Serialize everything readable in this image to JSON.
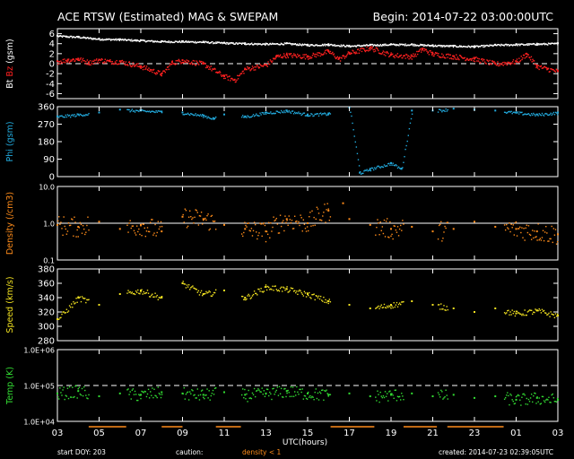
{
  "header": {
    "title": "ACE RTSW (Estimated) MAG & SWEPAM",
    "begin": "Begin: 2014-07-22 03:00:00UTC"
  },
  "footer": {
    "start_doy": "start DOY: 203",
    "caution": "caution:",
    "density_note": "density < 1",
    "created": "created: 2014-07-23 02:39:05UTC"
  },
  "colors": {
    "background": "#000000",
    "axis": "#ffffff",
    "bt": "#ffffff",
    "bz": "#ff2020",
    "phi": "#22aadd",
    "density": "#ff8c1a",
    "speed": "#f0e020",
    "temp": "#33dd33",
    "reference_line": "#ffffff"
  },
  "chart_data": [
    {
      "id": "mag",
      "type": "scatter",
      "ylabel_parts": [
        "Bt",
        "Bz",
        "(gsm)"
      ],
      "yticks": [
        6,
        4,
        2,
        0,
        -2,
        -4,
        -6
      ],
      "ylim": [
        -7,
        7
      ],
      "reference_line": 0,
      "series": [
        {
          "name": "Bt",
          "color_key": "bt",
          "points": [
            [
              0,
              5.6
            ],
            [
              1,
              5.4
            ],
            [
              2,
              5.0
            ],
            [
              3,
              4.9
            ],
            [
              4,
              4.7
            ],
            [
              5,
              4.5
            ],
            [
              6,
              4.5
            ],
            [
              7,
              4.4
            ],
            [
              8,
              4.2
            ],
            [
              9,
              4.1
            ],
            [
              10,
              4.0
            ],
            [
              11,
              4.1
            ],
            [
              12,
              3.8
            ],
            [
              13,
              3.9
            ],
            [
              14,
              3.6
            ],
            [
              15,
              3.8
            ],
            [
              16,
              3.9
            ],
            [
              17,
              3.9
            ],
            [
              18,
              3.7
            ],
            [
              19,
              3.6
            ],
            [
              20,
              3.5
            ],
            [
              21,
              3.8
            ],
            [
              22,
              3.9
            ],
            [
              23,
              4.0
            ],
            [
              24,
              4.1
            ]
          ]
        },
        {
          "name": "Bz",
          "color_key": "bz",
          "points": [
            [
              0,
              0.5
            ],
            [
              0.5,
              0.8
            ],
            [
              1,
              1.0
            ],
            [
              1.5,
              0.3
            ],
            [
              2,
              0.8
            ],
            [
              2.5,
              0.5
            ],
            [
              3,
              0.5
            ],
            [
              4,
              -0.5
            ],
            [
              5,
              -2.0
            ],
            [
              5.5,
              0.3
            ],
            [
              6,
              0.7
            ],
            [
              7,
              0.0
            ],
            [
              8,
              -2.5
            ],
            [
              8.5,
              -3.2
            ],
            [
              9,
              -1.0
            ],
            [
              10,
              -0.2
            ],
            [
              10.5,
              1.5
            ],
            [
              11,
              1.8
            ],
            [
              12,
              1.5
            ],
            [
              13,
              2.5
            ],
            [
              13.5,
              1.0
            ],
            [
              14,
              2.2
            ],
            [
              15,
              3.2
            ],
            [
              16,
              1.8
            ],
            [
              17,
              1.5
            ],
            [
              17.5,
              3.0
            ],
            [
              18,
              2.0
            ],
            [
              19,
              1.5
            ],
            [
              20,
              1.0
            ],
            [
              21,
              0.0
            ],
            [
              22,
              0.5
            ],
            [
              22.5,
              2.0
            ],
            [
              23,
              -0.5
            ],
            [
              23.5,
              -1.0
            ],
            [
              24,
              -1.5
            ]
          ]
        }
      ]
    },
    {
      "id": "phi",
      "type": "scatter",
      "ylabel": "Phi (gsm)",
      "yticks": [
        360,
        270,
        180,
        90,
        0
      ],
      "ylim": [
        0,
        360
      ],
      "series": [
        {
          "name": "Phi",
          "color_key": "phi",
          "points": [
            [
              0,
              310
            ],
            [
              1,
              320
            ],
            [
              2,
              330
            ],
            [
              3,
              345
            ],
            [
              4,
              340
            ],
            [
              5,
              335
            ],
            [
              6,
              330
            ],
            [
              7,
              315
            ],
            [
              7.5,
              300
            ],
            [
              8,
              320
            ],
            [
              9,
              310
            ],
            [
              10,
              330
            ],
            [
              11,
              340
            ],
            [
              12,
              320
            ],
            [
              13,
              325
            ],
            [
              14,
              360
            ],
            [
              14.5,
              20
            ],
            [
              15,
              40
            ],
            [
              16,
              70
            ],
            [
              16.5,
              40
            ],
            [
              17,
              340
            ],
            [
              18,
              340
            ],
            [
              19,
              350
            ],
            [
              20,
              345
            ],
            [
              21,
              340
            ],
            [
              22,
              330
            ],
            [
              23,
              320
            ],
            [
              24,
              330
            ]
          ]
        }
      ]
    },
    {
      "id": "density",
      "type": "scatter",
      "ylabel": "Density (/cm3)",
      "y_scale": "log",
      "yticks": [
        "10.0",
        "1.0",
        "0.1"
      ],
      "ylim": [
        0.1,
        10
      ],
      "reference_line": 1.0,
      "series": [
        {
          "name": "Density",
          "color_key": "density",
          "points": [
            [
              0,
              0.9
            ],
            [
              1,
              0.8
            ],
            [
              2,
              1.1
            ],
            [
              3,
              0.7
            ],
            [
              4,
              0.9
            ],
            [
              5,
              0.6
            ],
            [
              6,
              1.5
            ],
            [
              7,
              1.3
            ],
            [
              8,
              0.9
            ],
            [
              9,
              0.7
            ],
            [
              10,
              0.6
            ],
            [
              11,
              1.3
            ],
            [
              12,
              1.0
            ],
            [
              13,
              2.2
            ],
            [
              13.7,
              3.5
            ],
            [
              14,
              1.3
            ],
            [
              15,
              0.9
            ],
            [
              16,
              0.7
            ],
            [
              17,
              0.8
            ],
            [
              18,
              0.6
            ],
            [
              19,
              0.7
            ],
            [
              20,
              1.1
            ],
            [
              21,
              0.8
            ],
            [
              22,
              0.7
            ],
            [
              23,
              0.6
            ],
            [
              24,
              0.5
            ]
          ]
        }
      ]
    },
    {
      "id": "speed",
      "type": "scatter",
      "ylabel": "Speed (km/s)",
      "yticks": [
        380,
        360,
        340,
        320,
        300,
        280
      ],
      "ylim": [
        280,
        380
      ],
      "series": [
        {
          "name": "Speed",
          "color_key": "speed",
          "points": [
            [
              0,
              310
            ],
            [
              1,
              340
            ],
            [
              2,
              330
            ],
            [
              3,
              345
            ],
            [
              4,
              350
            ],
            [
              5,
              340
            ],
            [
              6,
              360
            ],
            [
              7,
              345
            ],
            [
              8,
              350
            ],
            [
              9,
              340
            ],
            [
              10,
              355
            ],
            [
              11,
              352
            ],
            [
              12,
              345
            ],
            [
              13,
              335
            ],
            [
              14,
              330
            ],
            [
              15,
              325
            ],
            [
              16,
              330
            ],
            [
              17,
              335
            ],
            [
              18,
              330
            ],
            [
              19,
              325
            ],
            [
              20,
              320
            ],
            [
              21,
              325
            ],
            [
              22,
              318
            ],
            [
              23,
              322
            ],
            [
              24,
              315
            ]
          ]
        }
      ]
    },
    {
      "id": "temp",
      "type": "scatter",
      "ylabel": "Temp (K)",
      "y_scale": "log",
      "yticks": [
        "1.0E+06",
        "1.0E+05",
        "1.0E+04"
      ],
      "ylim": [
        10000,
        1000000
      ],
      "reference_line": 100000,
      "series": [
        {
          "name": "Temp",
          "color_key": "temp",
          "points": [
            [
              0,
              60000
            ],
            [
              1,
              70000
            ],
            [
              2,
              50000
            ],
            [
              3,
              60000
            ],
            [
              4,
              55000
            ],
            [
              5,
              65000
            ],
            [
              6,
              60000
            ],
            [
              7,
              55000
            ],
            [
              8,
              65000
            ],
            [
              9,
              55000
            ],
            [
              10,
              60000
            ],
            [
              11,
              70000
            ],
            [
              12,
              60000
            ],
            [
              13,
              55000
            ],
            [
              14,
              60000
            ],
            [
              15,
              50000
            ],
            [
              16,
              55000
            ],
            [
              17,
              60000
            ],
            [
              18,
              50000
            ],
            [
              19,
              55000
            ],
            [
              20,
              45000
            ],
            [
              21,
              50000
            ],
            [
              22,
              40000
            ],
            [
              23,
              45000
            ],
            [
              24,
              40000
            ]
          ]
        }
      ]
    }
  ],
  "x_axis": {
    "label": "UTC(hours)",
    "range": [
      0,
      24
    ],
    "ticks": [
      "03",
      "05",
      "07",
      "09",
      "11",
      "13",
      "15",
      "17",
      "19",
      "21",
      "23",
      "01",
      "03"
    ]
  },
  "missing_data_segments": [
    [
      1.5,
      3.3
    ],
    [
      5.0,
      6.0
    ],
    [
      7.6,
      8.8
    ],
    [
      13.1,
      15.2
    ],
    [
      16.6,
      18.2
    ],
    [
      18.7,
      21.4
    ]
  ]
}
